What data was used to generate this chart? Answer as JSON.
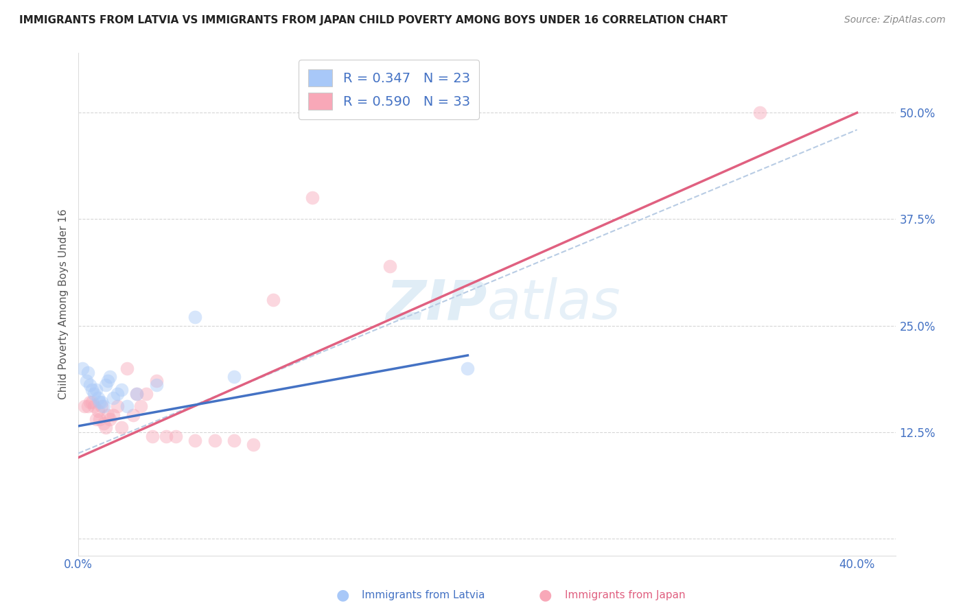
{
  "title": "IMMIGRANTS FROM LATVIA VS IMMIGRANTS FROM JAPAN CHILD POVERTY AMONG BOYS UNDER 16 CORRELATION CHART",
  "source": "Source: ZipAtlas.com",
  "ylabel": "Child Poverty Among Boys Under 16",
  "xlim": [
    0.0,
    0.42
  ],
  "ylim": [
    -0.02,
    0.57
  ],
  "x_ticks": [
    0.0,
    0.1,
    0.2,
    0.3,
    0.4
  ],
  "y_ticks": [
    0.0,
    0.125,
    0.25,
    0.375,
    0.5
  ],
  "watermark_zip": "ZIP",
  "watermark_atlas": "atlas",
  "latvia_R": 0.347,
  "latvia_N": 23,
  "japan_R": 0.59,
  "japan_N": 33,
  "latvia_color": "#a8c8f8",
  "japan_color": "#f8a8b8",
  "latvia_line_color": "#4472c4",
  "japan_line_color": "#e06080",
  "trend_line_color": "#b8cce4",
  "background_color": "#ffffff",
  "grid_color": "#cccccc",
  "legend_color": "#4472c4",
  "latvia_x": [
    0.002,
    0.004,
    0.005,
    0.006,
    0.007,
    0.008,
    0.009,
    0.01,
    0.011,
    0.012,
    0.013,
    0.014,
    0.015,
    0.016,
    0.018,
    0.02,
    0.022,
    0.025,
    0.03,
    0.04,
    0.06,
    0.08,
    0.2
  ],
  "latvia_y": [
    0.2,
    0.185,
    0.195,
    0.18,
    0.175,
    0.17,
    0.175,
    0.165,
    0.16,
    0.16,
    0.155,
    0.18,
    0.185,
    0.19,
    0.165,
    0.17,
    0.175,
    0.155,
    0.17,
    0.18,
    0.26,
    0.19,
    0.2
  ],
  "japan_x": [
    0.003,
    0.005,
    0.006,
    0.007,
    0.008,
    0.009,
    0.01,
    0.011,
    0.012,
    0.013,
    0.014,
    0.015,
    0.016,
    0.018,
    0.02,
    0.022,
    0.025,
    0.028,
    0.03,
    0.032,
    0.035,
    0.038,
    0.04,
    0.045,
    0.05,
    0.06,
    0.07,
    0.08,
    0.09,
    0.1,
    0.12,
    0.16,
    0.35
  ],
  "japan_y": [
    0.155,
    0.155,
    0.16,
    0.16,
    0.155,
    0.14,
    0.15,
    0.14,
    0.155,
    0.135,
    0.13,
    0.145,
    0.14,
    0.145,
    0.155,
    0.13,
    0.2,
    0.145,
    0.17,
    0.155,
    0.17,
    0.12,
    0.185,
    0.12,
    0.12,
    0.115,
    0.115,
    0.115,
    0.11,
    0.28,
    0.4,
    0.32,
    0.5
  ],
  "latvia_line_x": [
    0.0,
    0.2
  ],
  "latvia_line_y": [
    0.132,
    0.215
  ],
  "japan_line_x": [
    0.0,
    0.4
  ],
  "japan_line_y": [
    0.095,
    0.5
  ],
  "dashed_line_x": [
    0.0,
    0.4
  ],
  "dashed_line_y": [
    0.1,
    0.48
  ],
  "title_fontsize": 11,
  "source_fontsize": 10,
  "axis_label_fontsize": 11,
  "tick_fontsize": 12,
  "legend_fontsize": 14,
  "marker_size": 200,
  "marker_alpha": 0.45
}
